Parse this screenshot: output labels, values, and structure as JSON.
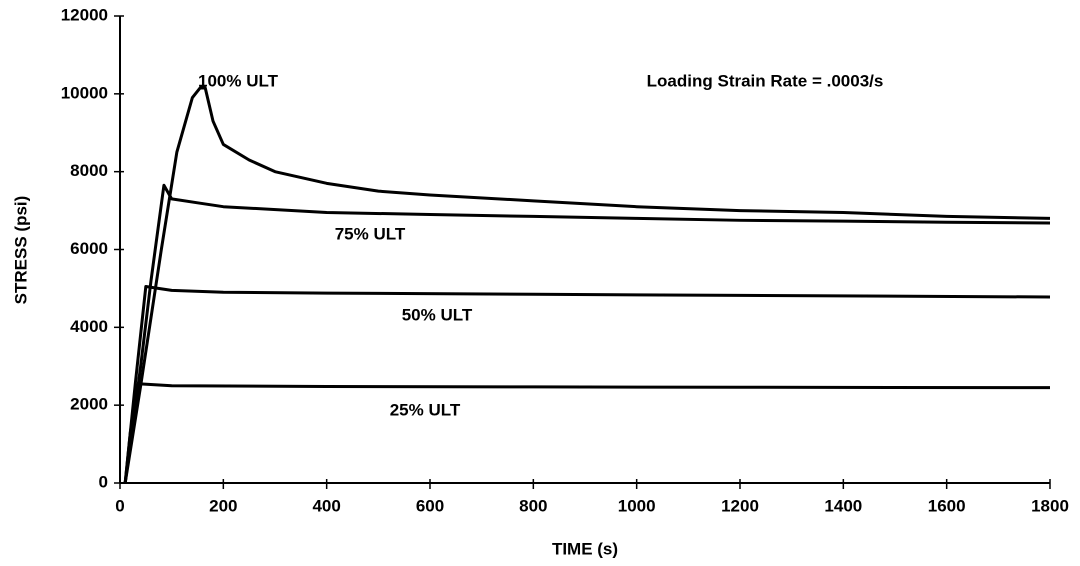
{
  "chart_data": {
    "type": "line",
    "annotation": "Loading Strain Rate = .0003/s",
    "xlabel": "TIME (s)",
    "ylabel": "STRESS (psi)",
    "xlim": [
      0,
      1800
    ],
    "xticks": [
      0,
      200,
      400,
      600,
      800,
      1000,
      1200,
      1400,
      1600,
      1800
    ],
    "ylim": [
      0,
      12000
    ],
    "yticks": [
      0,
      2000,
      4000,
      6000,
      8000,
      10000,
      12000
    ],
    "grid": false,
    "series": [
      {
        "name": "100% ULT",
        "color": "#000000",
        "x": [
          10,
          40,
          80,
          110,
          140,
          155,
          165,
          180,
          200,
          250,
          300,
          400,
          500,
          600,
          800,
          1000,
          1200,
          1400,
          1600,
          1800
        ],
        "values": [
          0,
          2500,
          6000,
          8500,
          9900,
          10150,
          10150,
          9300,
          8700,
          8300,
          8000,
          7700,
          7500,
          7400,
          7250,
          7100,
          7000,
          6950,
          6850,
          6800
        ]
      },
      {
        "name": "75% ULT",
        "color": "#000000",
        "x": [
          10,
          40,
          60,
          85,
          100,
          150,
          200,
          400,
          600,
          800,
          1000,
          1200,
          1400,
          1600,
          1800
        ],
        "values": [
          0,
          3000,
          5200,
          7650,
          7300,
          7200,
          7100,
          6950,
          6900,
          6850,
          6800,
          6750,
          6730,
          6700,
          6680
        ]
      },
      {
        "name": "50% ULT",
        "color": "#000000",
        "x": [
          10,
          30,
          50,
          100,
          200,
          400,
          800,
          1200,
          1800
        ],
        "values": [
          0,
          2600,
          5050,
          4950,
          4900,
          4880,
          4850,
          4820,
          4780
        ]
      },
      {
        "name": "25% ULT",
        "color": "#000000",
        "x": [
          10,
          20,
          35,
          100,
          400,
          800,
          1200,
          1800
        ],
        "values": [
          0,
          1300,
          2550,
          2500,
          2480,
          2470,
          2460,
          2450
        ]
      }
    ]
  }
}
